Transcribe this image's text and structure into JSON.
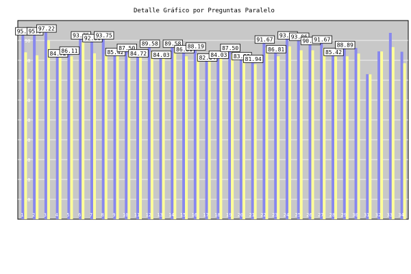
{
  "chart_data": {
    "type": "bar",
    "title": "Detalle Gráfico por Preguntas Paralelo",
    "xlabel": "",
    "ylabel": "",
    "ylim": [
      0,
      100
    ],
    "yticks": [
      10,
      20,
      30,
      40,
      50,
      60,
      70,
      80,
      90
    ],
    "grid": true,
    "legend": "none",
    "categories": [
      "1",
      "2",
      "3",
      "4",
      "5",
      "6",
      "7",
      "8",
      "9",
      "10",
      "11",
      "12",
      "13",
      "14",
      "15",
      "16",
      "17",
      "18",
      "19",
      "20",
      "21",
      "22",
      "23",
      "24",
      "25",
      "26",
      "27",
      "28",
      "29",
      "30",
      "31",
      "32",
      "33",
      "34"
    ],
    "series": [
      {
        "color": "#8888ee",
        "values": [
          95.8,
          95.8,
          97.22,
          84.72,
          86.11,
          93.75,
          92.36,
          93.75,
          85.42,
          87.5,
          84.72,
          89.58,
          84.03,
          89.58,
          86.81,
          88.19,
          82.64,
          84.03,
          87.5,
          83.33,
          81.94,
          91.67,
          86.81,
          93.75,
          93.06,
          90.97,
          91.67,
          85.42,
          88.89,
          86.2,
          73.0,
          84.5,
          93.8,
          84.3
        ]
      },
      {
        "color": "#ffff99",
        "values": [
          84.0,
          82.5,
          90.02,
          81.17,
          82.0,
          89.0,
          83.5,
          83.0,
          82.5,
          83.0,
          82.5,
          84.2,
          82.0,
          84.0,
          82.0,
          83.0,
          82.0,
          82.44,
          83.0,
          82.0,
          78.0,
          86.47,
          82.0,
          87.0,
          85.0,
          85.0,
          86.2,
          82.0,
          82.0,
          83.37,
          72.92,
          84.45,
          86.63,
          78.5
        ]
      }
    ],
    "data_labels": [
      {
        "index": 0,
        "text": "95.8"
      },
      {
        "index": 1,
        "text": "95.8"
      },
      {
        "index": 2,
        "text": "97.22"
      },
      {
        "index": 3,
        "text": "84.72"
      },
      {
        "index": 4,
        "text": "86.11"
      },
      {
        "index": 5,
        "text": "93.75"
      },
      {
        "index": 6,
        "text": "92.36"
      },
      {
        "index": 7,
        "text": "93.75"
      },
      {
        "index": 8,
        "text": "85.42"
      },
      {
        "index": 9,
        "text": "87.50"
      },
      {
        "index": 10,
        "text": "84.72"
      },
      {
        "index": 11,
        "text": "89.58"
      },
      {
        "index": 12,
        "text": "84.03"
      },
      {
        "index": 13,
        "text": "89.58"
      },
      {
        "index": 14,
        "text": "86.81"
      },
      {
        "index": 15,
        "text": "88.19"
      },
      {
        "index": 16,
        "text": "82.64"
      },
      {
        "index": 17,
        "text": "84.03"
      },
      {
        "index": 18,
        "text": "87.50"
      },
      {
        "index": 19,
        "text": "83.33"
      },
      {
        "index": 20,
        "text": "81.94"
      },
      {
        "index": 21,
        "text": "91.67"
      },
      {
        "index": 22,
        "text": "86.81"
      },
      {
        "index": 23,
        "text": "93.75"
      },
      {
        "index": 24,
        "text": "93.06"
      },
      {
        "index": 25,
        "text": "90.97"
      },
      {
        "index": 26,
        "text": "91.67"
      },
      {
        "index": 27,
        "text": "85.42"
      },
      {
        "index": 28,
        "text": "88.89"
      }
    ]
  },
  "colors": {
    "plot_background": "#c8c8c8",
    "grid": "#ffffff",
    "axis": "#000000"
  }
}
